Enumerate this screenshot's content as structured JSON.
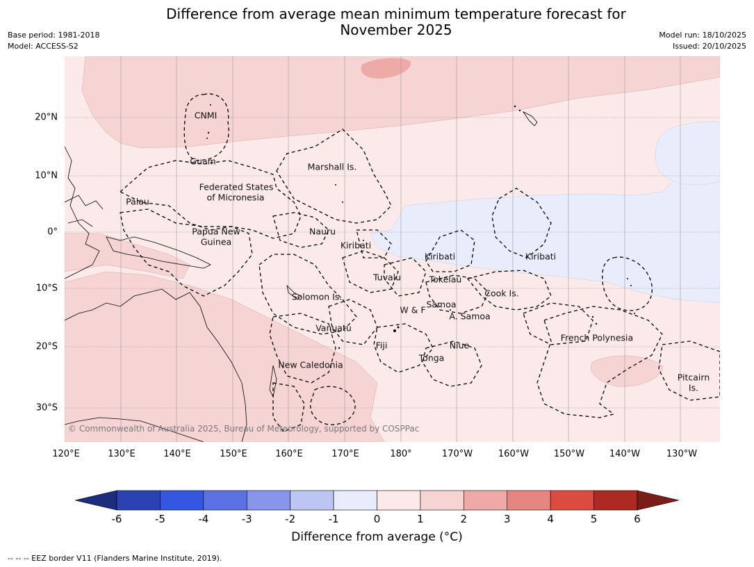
{
  "title_line1": "Difference from average mean minimum temperature forecast for",
  "title_line2": "November 2025",
  "meta": {
    "base_period": "Base period: 1981-2018",
    "model": "Model: ACCESS-S2",
    "model_run": "Model run: 18/10/2025",
    "issued": "Issued: 20/10/2025"
  },
  "map": {
    "lon_labels": [
      "120°E",
      "130°E",
      "140°E",
      "150°E",
      "160°E",
      "170°E",
      "180°",
      "170°W",
      "160°W",
      "150°W",
      "140°W",
      "130°W"
    ],
    "lat_labels": [
      "20°N",
      "10°N",
      "0°",
      "10°S",
      "20°S",
      "30°S"
    ],
    "countries": {
      "cnmi": "CNMI",
      "guam": "Guam",
      "marshall": "Marshall Is.",
      "fsm_1": "Federated States",
      "fsm_2": "of Micronesia",
      "palau": "Palau",
      "png_1": "Papua New",
      "png_2": "Guinea",
      "nauru": "Nauru",
      "kiribati_w": "Kiribati",
      "kiribati_c": "Kiribati",
      "kiribati_e": "Kiribati",
      "tuvalu": "Tuvalu",
      "tokelau": "Tokelau",
      "solomon": "Solomon Is.",
      "samoa": "Samoa",
      "wf": "W & F",
      "asamoa": "A. Samoa",
      "cook": "Cook Is.",
      "vanuatu": "Vanuatu",
      "fiji": "Fiji",
      "niue": "Niue",
      "tonga": "Tonga",
      "french_polynesia": "French Polynesia",
      "new_caledonia": "New Caledonia",
      "pitcairn_1": "Pitcairn",
      "pitcairn_2": "Is."
    },
    "credit": "© Commonwealth of Australia 2025, Bureau of Meteorology, supported by COSPPac"
  },
  "colorbar": {
    "ticks": [
      "-6",
      "-5",
      "-4",
      "-3",
      "-2",
      "-1",
      "0",
      "1",
      "2",
      "3",
      "4",
      "5",
      "6"
    ],
    "colors": [
      "#1c2d7c",
      "#2b42b3",
      "#3456e0",
      "#5c72e4",
      "#8796eb",
      "#bdc6f3",
      "#e8ecfb",
      "#fbeae9",
      "#f5d4d3",
      "#edaaa7",
      "#e58680",
      "#dc4b40",
      "#ad2a22",
      "#7a1c18"
    ],
    "label": "Difference from average (°C)"
  },
  "legend": {
    "eez": "--  --  -- EEZ border V11 (Flanders Marine Institute, 2019)."
  }
}
